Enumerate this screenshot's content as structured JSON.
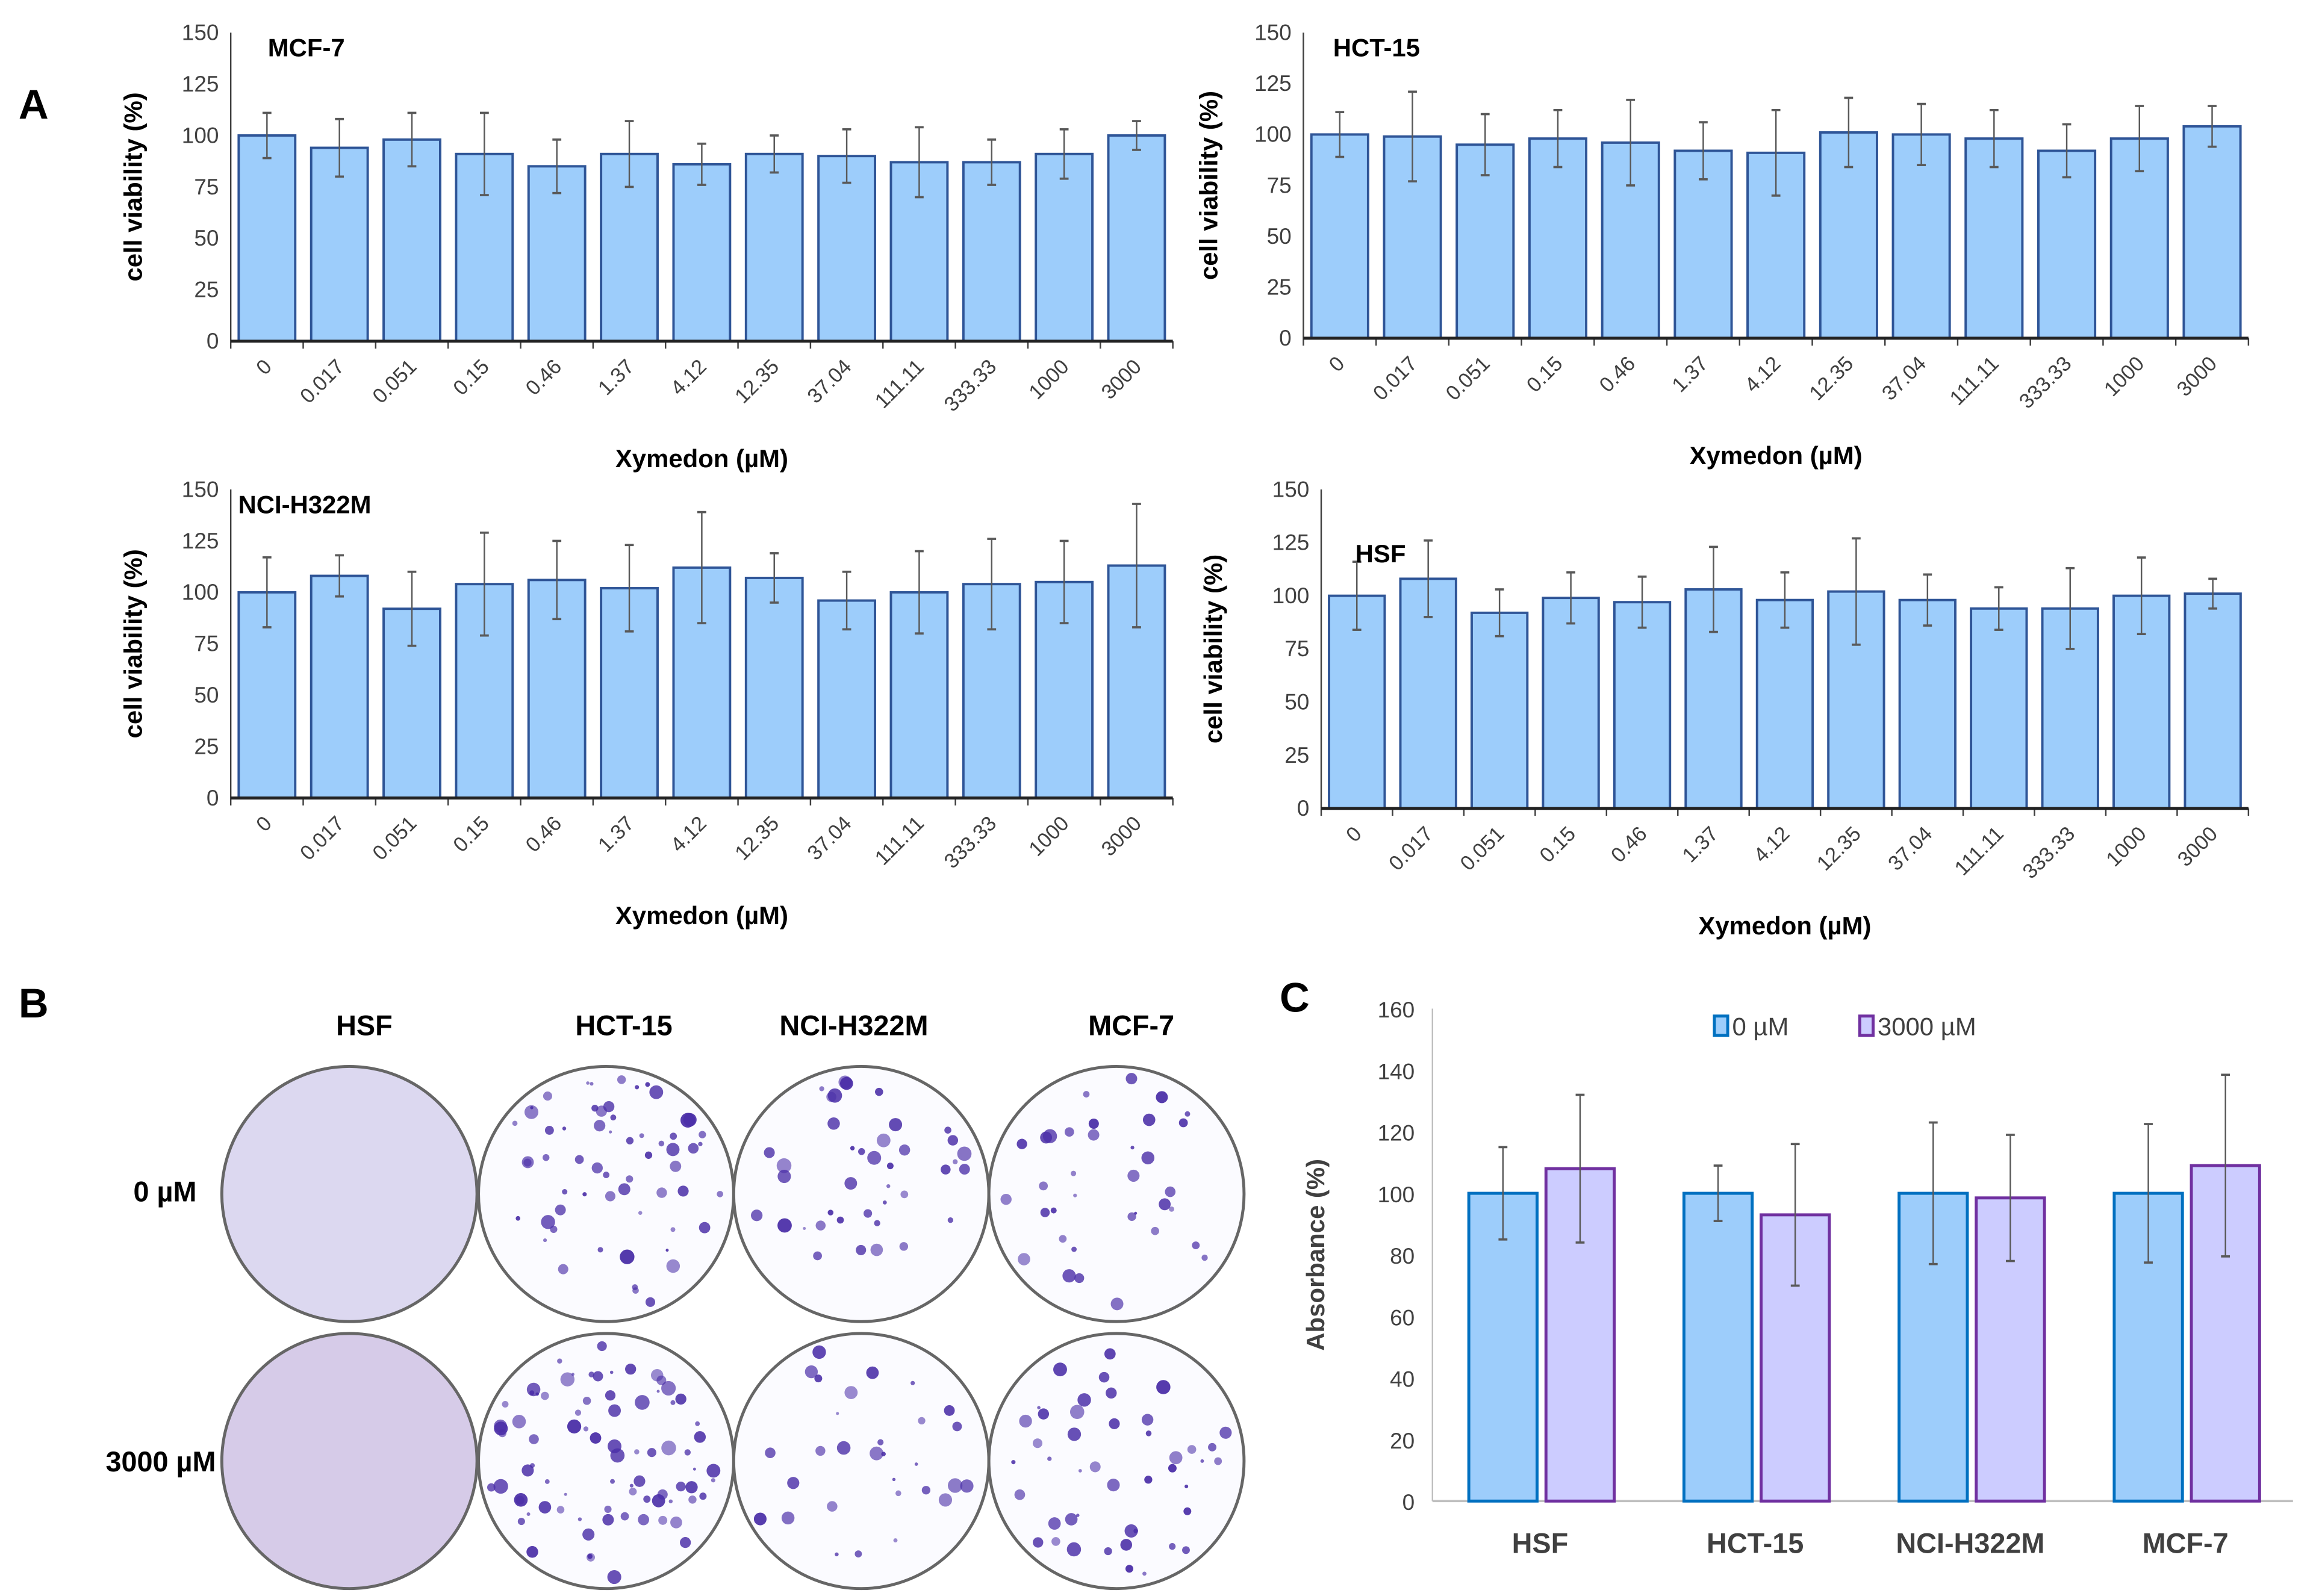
{
  "panels": {
    "a": "A",
    "b": "B",
    "c": "C"
  },
  "chart_data": [
    {
      "type": "bar",
      "title": "MCF-7",
      "xlabel": "Xymedon (µM)",
      "ylabel": "cell viability (%)",
      "ylim": [
        0,
        150
      ],
      "yticks": [
        0,
        25,
        50,
        75,
        100,
        125,
        150
      ],
      "grid": false,
      "categories": [
        "0",
        "0.017",
        "0.051",
        "0.15",
        "0.46",
        "1.37",
        "4.12",
        "12.35",
        "37.04",
        "111.11",
        "333.33",
        "1000",
        "3000"
      ],
      "values": [
        100,
        94,
        98,
        91,
        85,
        91,
        86,
        91,
        90,
        87,
        87,
        91,
        100
      ],
      "errors": [
        11,
        14,
        13,
        20,
        13,
        16,
        10,
        9,
        13,
        17,
        11,
        12,
        7
      ],
      "colors": {
        "fill": "#9dcdfb",
        "stroke": "#2f5597"
      }
    },
    {
      "type": "bar",
      "title": "HCT-15",
      "xlabel": "Xymedon (µM)",
      "ylabel": "cell viability (%)",
      "ylim": [
        0,
        150
      ],
      "yticks": [
        0,
        25,
        50,
        75,
        100,
        125,
        150
      ],
      "grid": false,
      "categories": [
        "0",
        "0.017",
        "0.051",
        "0.15",
        "0.46",
        "1.37",
        "4.12",
        "12.35",
        "37.04",
        "111.11",
        "333.33",
        "1000",
        "3000"
      ],
      "values": [
        100,
        99,
        95,
        98,
        96,
        92,
        91,
        101,
        100,
        98,
        92,
        98,
        104
      ],
      "errors": [
        11,
        22,
        15,
        14,
        21,
        14,
        21,
        17,
        15,
        14,
        13,
        16,
        10
      ],
      "colors": {
        "fill": "#9dcdfb",
        "stroke": "#2f5597"
      }
    },
    {
      "type": "bar",
      "title": "NCI-H322M",
      "xlabel": "Xymedon (µM)",
      "ylabel": "cell viability (%)",
      "ylim": [
        0,
        150
      ],
      "yticks": [
        0,
        25,
        50,
        75,
        100,
        125,
        150
      ],
      "grid": false,
      "categories": [
        "0",
        "0.017",
        "0.051",
        "0.15",
        "0.46",
        "1.37",
        "4.12",
        "12.35",
        "37.04",
        "111.11",
        "333.33",
        "1000",
        "3000"
      ],
      "values": [
        100,
        108,
        92,
        104,
        106,
        102,
        112,
        107,
        96,
        100,
        104,
        105,
        113
      ],
      "errors": [
        17,
        10,
        18,
        25,
        19,
        21,
        27,
        12,
        14,
        20,
        22,
        20,
        30
      ],
      "colors": {
        "fill": "#9dcdfb",
        "stroke": "#2f5597"
      }
    },
    {
      "type": "bar",
      "title": "HSF",
      "xlabel": "Xymedon (µM)",
      "ylabel": "cell viability (%)",
      "ylim": [
        0,
        150
      ],
      "yticks": [
        0,
        25,
        50,
        75,
        100,
        125,
        150
      ],
      "grid": false,
      "categories": [
        "0",
        "0.017",
        "0.051",
        "0.15",
        "0.46",
        "1.37",
        "4.12",
        "12.35",
        "37.04",
        "111.11",
        "333.33",
        "1000",
        "3000"
      ],
      "values": [
        100,
        108,
        92,
        99,
        97,
        103,
        98,
        102,
        98,
        94,
        94,
        100,
        101
      ],
      "errors": [
        16,
        18,
        11,
        12,
        12,
        20,
        13,
        25,
        12,
        10,
        19,
        18,
        7
      ],
      "colors": {
        "fill": "#9dcdfb",
        "stroke": "#2f5597"
      }
    },
    {
      "type": "bar",
      "title": "",
      "xlabel": "",
      "ylabel": "Absorbance (%)",
      "ylim": [
        0,
        160
      ],
      "yticks": [
        0,
        20,
        40,
        60,
        80,
        100,
        120,
        140,
        160
      ],
      "grid": false,
      "legend": "top-center",
      "categories": [
        "HSF",
        "HCT-15",
        "NCI-H322M",
        "MCF-7"
      ],
      "series": [
        {
          "name": "0 µM",
          "values": [
            100,
            100,
            100,
            100
          ],
          "errors": [
            15,
            9,
            23,
            22.5
          ],
          "fill": "#9dcdfb",
          "stroke": "#0070c0"
        },
        {
          "name": "3000 µM",
          "values": [
            108,
            93,
            98.5,
            109
          ],
          "errors": [
            24,
            23,
            20.5,
            29.5
          ],
          "fill": "#ccccff",
          "stroke": "#7030a0"
        }
      ]
    }
  ],
  "colony_assay": {
    "columns": [
      "HSF",
      "HCT-15",
      "NCI-H322M",
      "MCF-7"
    ],
    "rows": [
      "0 µM",
      "3000 µM"
    ],
    "stain_color": "#4b2fa8"
  }
}
